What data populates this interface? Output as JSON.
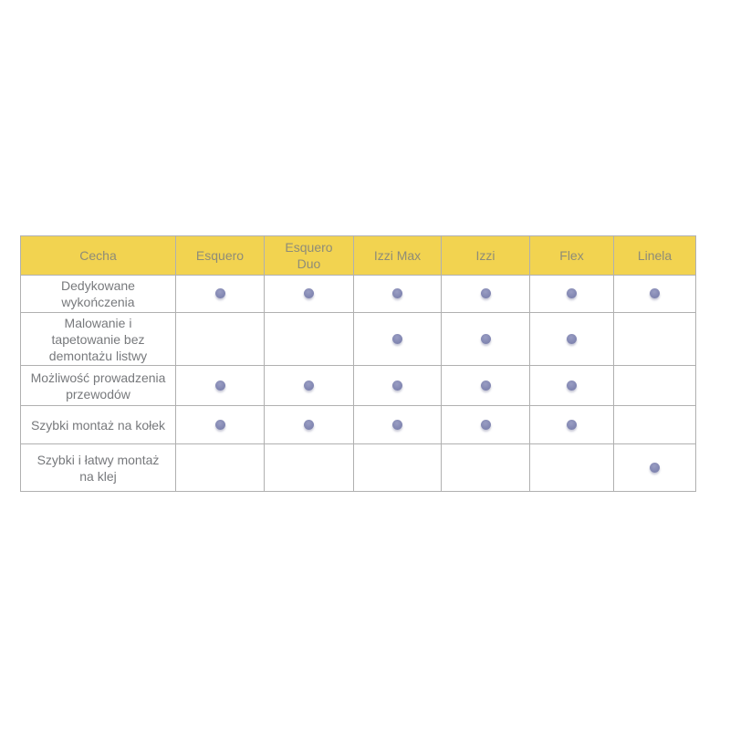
{
  "page": {
    "background_color": "#ffffff"
  },
  "table": {
    "name": "product-feature-comparison",
    "header": {
      "background_color": "#f2d350",
      "text_color": "#8e8c78",
      "columns": [
        "Cecha",
        "Esquero",
        "Esquero\nDuo",
        "Izzi Max",
        "Izzi",
        "Flex",
        "Linela"
      ]
    },
    "body": {
      "text_color": "#77797c",
      "border_color": "#b0b0b0",
      "dot_color": "#8185b2",
      "dot_meaning": "feature-present-dot",
      "rows": [
        {
          "feature": "Dedykowane\nwykończenia",
          "values": [
            true,
            true,
            true,
            true,
            true,
            true
          ]
        },
        {
          "feature": "Malowanie i\ntapetowanie bez\ndemontażu listwy",
          "values": [
            false,
            false,
            true,
            true,
            true,
            false
          ]
        },
        {
          "feature": "Możliwość prowadzenia\nprzewodów",
          "values": [
            true,
            true,
            true,
            true,
            true,
            false
          ]
        },
        {
          "feature": "Szybki montaż na kołek",
          "values": [
            true,
            true,
            true,
            true,
            true,
            false
          ]
        },
        {
          "feature": "Szybki i łatwy montaż\nna klej",
          "values": [
            false,
            false,
            false,
            false,
            false,
            true
          ]
        }
      ]
    }
  },
  "chart_data": {
    "type": "table",
    "title": "",
    "columns": [
      "Cecha",
      "Esquero",
      "Esquero Duo",
      "Izzi Max",
      "Izzi",
      "Flex",
      "Linela"
    ],
    "row_labels": [
      "Dedykowane wykończenia",
      "Malowanie i tapetowanie bez demontażu listwy",
      "Możliwość prowadzenia przewodów",
      "Szybki montaż na kołek",
      "Szybki i łatwy montaż na klej"
    ],
    "matrix": [
      [
        1,
        1,
        1,
        1,
        1,
        1
      ],
      [
        0,
        0,
        1,
        1,
        1,
        0
      ],
      [
        1,
        1,
        1,
        1,
        1,
        0
      ],
      [
        1,
        1,
        1,
        1,
        1,
        0
      ],
      [
        0,
        0,
        0,
        0,
        0,
        1
      ]
    ],
    "cell_encoding": "1 = purple dot (feature available), 0 = empty cell",
    "header_background": "#f2d350",
    "dot_color": "#8185b2"
  }
}
